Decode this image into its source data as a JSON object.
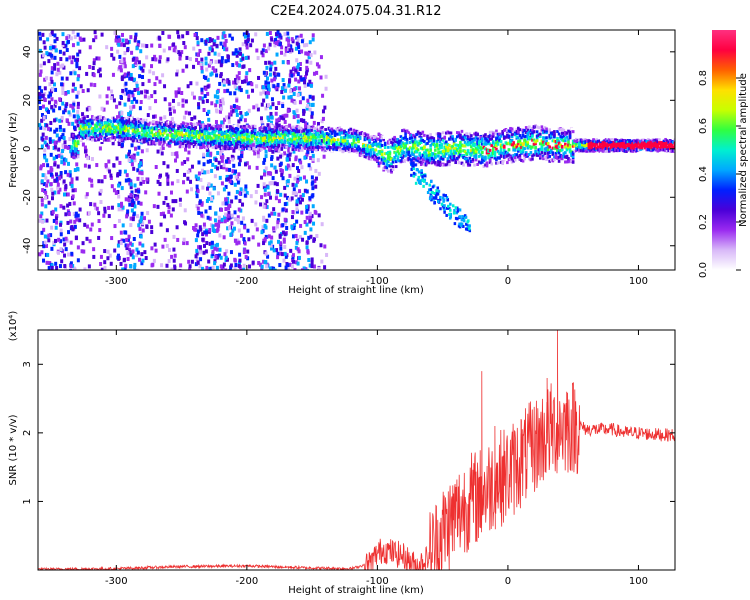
{
  "title": "C2E4.2024.075.04.31.R12",
  "colors": {
    "snr_line": "#ee3030",
    "axis": "#000000"
  },
  "chart_data": [
    {
      "type": "heatmap",
      "xlabel": "Height of straight line (km)",
      "ylabel": "Frequency (Hz)",
      "xlim": [
        -360,
        128
      ],
      "ylim": [
        -50,
        49
      ],
      "x_ticks": [
        -300,
        -200,
        -100,
        0,
        100
      ],
      "x_tick_labels": [
        "-300",
        "-200",
        "-100",
        "0",
        "100"
      ],
      "y_ticks": [
        -40,
        -20,
        0,
        20,
        40
      ],
      "y_tick_labels": [
        "-40",
        "-20",
        "0",
        "20",
        "40"
      ],
      "grid": false,
      "colorbar": {
        "label": "Normalized spectral amplitude",
        "range": [
          0,
          1
        ],
        "ticks": [
          0.0,
          0.2,
          0.4,
          0.6,
          0.8
        ],
        "tick_labels": [
          "0.0",
          "0.2",
          "0.4",
          "0.6",
          "0.8"
        ],
        "colormap": [
          "#ffffff",
          "#d8b8f8",
          "#9a2af0",
          "#4a00d8",
          "#0020ff",
          "#00a8ff",
          "#00f0d0",
          "#30ff40",
          "#c8ff00",
          "#ffe000",
          "#ff6000",
          "#ff0040",
          "#ff3080"
        ]
      },
      "ridge": [
        {
          "x": -330,
          "y": 9
        },
        {
          "x": -300,
          "y": 9
        },
        {
          "x": -270,
          "y": 7
        },
        {
          "x": -240,
          "y": 6
        },
        {
          "x": -200,
          "y": 5
        },
        {
          "x": -150,
          "y": 5
        },
        {
          "x": -120,
          "y": 4
        },
        {
          "x": -100,
          "y": 0
        },
        {
          "x": -92,
          "y": -3
        },
        {
          "x": -80,
          "y": 2
        },
        {
          "x": -60,
          "y": 0
        },
        {
          "x": -40,
          "y": 1
        },
        {
          "x": -20,
          "y": 0
        },
        {
          "x": 0,
          "y": 2
        },
        {
          "x": 20,
          "y": 3
        },
        {
          "x": 40,
          "y": 2
        },
        {
          "x": 60,
          "y": 2
        },
        {
          "x": 100,
          "y": 2
        },
        {
          "x": 128,
          "y": 2
        }
      ]
    },
    {
      "type": "line",
      "xlabel": "Height of straight line (km)",
      "ylabel": "SNR (10 * v/v)",
      "y_multiplier": "(x10⁴)",
      "xlim": [
        -360,
        128
      ],
      "ylim": [
        0,
        3.5
      ],
      "x_ticks": [
        -300,
        -200,
        -100,
        0,
        100
      ],
      "x_tick_labels": [
        "-300",
        "-200",
        "-100",
        "0",
        "100"
      ],
      "y_ticks": [
        1,
        2,
        3
      ],
      "y_tick_labels": [
        "1",
        "2",
        "3"
      ],
      "grid": false,
      "series": [
        {
          "color": "#ee3030",
          "x": [
            -360,
            -300,
            -250,
            -200,
            -150,
            -120,
            -105,
            -100,
            -95,
            -80,
            -70,
            -60,
            -50,
            -40,
            -30,
            -20,
            -10,
            0,
            10,
            20,
            30,
            40,
            50,
            55,
            60,
            70,
            80,
            90,
            100,
            110,
            120,
            128
          ],
          "y": [
            0.01,
            0.02,
            0.05,
            0.06,
            0.03,
            0.02,
            0.1,
            0.25,
            0.3,
            0.2,
            0.05,
            0.2,
            0.55,
            0.8,
            1.0,
            1.1,
            1.3,
            1.4,
            1.6,
            1.8,
            2.0,
            2.1,
            2.1,
            2.1,
            2.05,
            2.05,
            2.05,
            2.0,
            2.0,
            1.98,
            1.97,
            1.97
          ],
          "peaks": [
            {
              "x": -20,
              "y": 2.9
            },
            {
              "x": -10,
              "y": 2.1
            },
            {
              "x": 10,
              "y": 2.2
            },
            {
              "x": 30,
              "y": 2.8
            },
            {
              "x": 38,
              "y": 3.5
            },
            {
              "x": 45,
              "y": 2.6
            }
          ]
        }
      ]
    }
  ]
}
